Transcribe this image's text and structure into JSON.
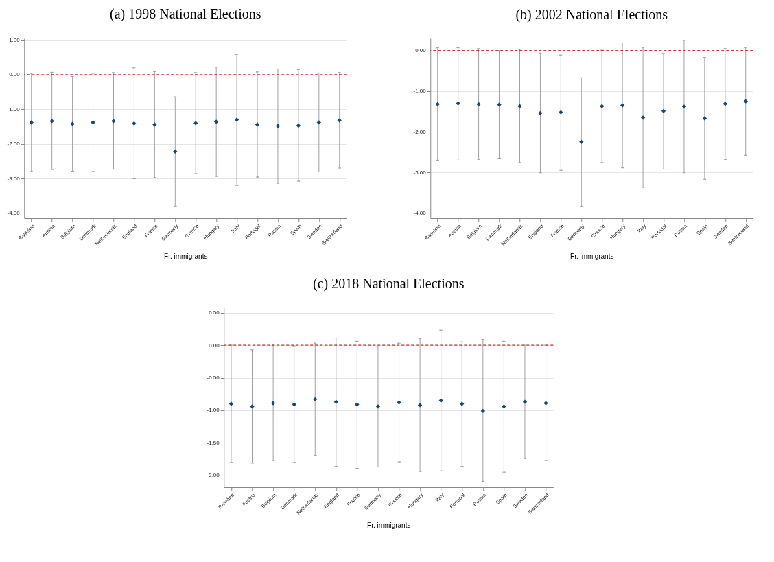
{
  "chart_data": [
    {
      "type": "scatter",
      "title": "(a) 1998 National Elections",
      "xlabel": "Fr. immigrants",
      "categories": [
        "Baseline",
        "Austria",
        "Belgium",
        "Denmark",
        "Netherlands",
        "England",
        "France",
        "Germany",
        "Greece",
        "Hungary",
        "Italy",
        "Portugal",
        "Russia",
        "Spain",
        "Sweden",
        "Switzerland"
      ],
      "series": [
        {
          "color": "#1a476f",
          "values": [
            -1.38,
            -1.34,
            -1.42,
            -1.38,
            -1.34,
            -1.41,
            -1.44,
            -2.22,
            -1.4,
            -1.36,
            -1.3,
            -1.44,
            -1.48,
            -1.47,
            -1.38,
            -1.32
          ],
          "errors": [
            [
              -2.8,
              0.04
            ],
            [
              -2.74,
              0.07
            ],
            [
              -2.79,
              -0.05
            ],
            [
              -2.8,
              0.04
            ],
            [
              -2.73,
              0.06
            ],
            [
              -3.01,
              0.2
            ],
            [
              -2.98,
              0.09
            ],
            [
              -3.8,
              -0.64
            ],
            [
              -2.86,
              0.06
            ],
            [
              -2.94,
              0.22
            ],
            [
              -3.2,
              0.59
            ],
            [
              -2.96,
              0.08
            ],
            [
              -3.14,
              0.17
            ],
            [
              -3.08,
              0.15
            ],
            [
              -2.81,
              0.05
            ],
            [
              -2.7,
              0.06
            ]
          ]
        }
      ],
      "ylim": [
        -4.15,
        1.05
      ],
      "yticks": [
        {
          "value": -4,
          "label": "-4.00"
        },
        {
          "value": -3,
          "label": "-3.00"
        },
        {
          "value": -2,
          "label": "-2.00"
        },
        {
          "value": -1,
          "label": "-1.00"
        },
        {
          "value": 0,
          "label": "0.00"
        },
        {
          "value": 1,
          "label": "1.00"
        }
      ],
      "ref_lines": [
        {
          "axis": "y",
          "value": 0,
          "color": "#c00000",
          "line_style": "dashed"
        }
      ],
      "grid": "y",
      "marker": "diamond"
    },
    {
      "type": "scatter",
      "title": "(b) 2002 National Elections",
      "xlabel": "Fr. immigrants",
      "categories": [
        "Baseline",
        "Austria",
        "Belgium",
        "Denmark",
        "Netherlands",
        "England",
        "France",
        "Germany",
        "Greece",
        "Hungary",
        "Italy",
        "Portugal",
        "Russia",
        "Spain",
        "Sweden",
        "Switzerland"
      ],
      "series": [
        {
          "color": "#1a476f",
          "values": [
            -1.32,
            -1.3,
            -1.32,
            -1.33,
            -1.37,
            -1.54,
            -1.52,
            -2.25,
            -1.37,
            -1.35,
            -1.65,
            -1.49,
            -1.38,
            -1.67,
            -1.31,
            -1.25
          ],
          "errors": [
            [
              -2.7,
              0.07
            ],
            [
              -2.67,
              0.07
            ],
            [
              -2.68,
              0.05
            ],
            [
              -2.65,
              0.0
            ],
            [
              -2.76,
              0.03
            ],
            [
              -3.01,
              -0.06
            ],
            [
              -2.95,
              -0.11
            ],
            [
              -3.84,
              -0.67
            ],
            [
              -2.76,
              0.01
            ],
            [
              -2.89,
              0.19
            ],
            [
              -3.37,
              0.07
            ],
            [
              -2.92,
              -0.07
            ],
            [
              -3.01,
              0.25
            ],
            [
              -3.17,
              -0.17
            ],
            [
              -2.68,
              0.05
            ],
            [
              -2.58,
              0.08
            ]
          ]
        }
      ],
      "ylim": [
        -4.13,
        0.3
      ],
      "yticks": [
        {
          "value": -4,
          "label": "-4.00"
        },
        {
          "value": -3,
          "label": "-3.00"
        },
        {
          "value": -2,
          "label": "-2.00"
        },
        {
          "value": -1,
          "label": "-1.00"
        },
        {
          "value": 0,
          "label": "0.00"
        }
      ],
      "ref_lines": [
        {
          "axis": "y",
          "value": 0,
          "color": "#c00000",
          "line_style": "dashed"
        }
      ],
      "grid": "y",
      "marker": "diamond"
    },
    {
      "type": "scatter",
      "title": "(c) 2018 National Elections",
      "xlabel": "Fr. immigrants",
      "categories": [
        "Baseline",
        "Austria",
        "Belgium",
        "Denmark",
        "Netherlands",
        "England",
        "France",
        "Germany",
        "Greece",
        "Hungary",
        "Italy",
        "Portugal",
        "Russia",
        "Spain",
        "Sweden",
        "Switzerland"
      ],
      "series": [
        {
          "color": "#1a476f",
          "values": [
            -0.9,
            -0.94,
            -0.89,
            -0.91,
            -0.83,
            -0.87,
            -0.91,
            -0.94,
            -0.88,
            -0.92,
            -0.85,
            -0.9,
            -1.01,
            -0.94,
            -0.87,
            -0.89
          ],
          "errors": [
            [
              -1.8,
              0.0
            ],
            [
              -1.81,
              -0.07
            ],
            [
              -1.77,
              0.0
            ],
            [
              -1.8,
              -0.01
            ],
            [
              -1.69,
              0.03
            ],
            [
              -1.86,
              0.11
            ],
            [
              -1.89,
              0.06
            ],
            [
              -1.87,
              -0.02
            ],
            [
              -1.79,
              0.03
            ],
            [
              -1.94,
              0.1
            ],
            [
              -1.93,
              0.23
            ],
            [
              -1.86,
              0.05
            ],
            [
              -2.09,
              0.09
            ],
            [
              -1.95,
              0.06
            ],
            [
              -1.74,
              0.0
            ],
            [
              -1.77,
              0.0
            ]
          ]
        }
      ],
      "ylim": [
        -2.18,
        0.58
      ],
      "yticks": [
        {
          "value": -2,
          "label": "-2.00"
        },
        {
          "value": -1.5,
          "label": "-1.50"
        },
        {
          "value": -1,
          "label": "-1.00"
        },
        {
          "value": -0.5,
          "label": "-0.50"
        },
        {
          "value": 0,
          "label": "0.00"
        },
        {
          "value": 0.5,
          "label": "0.50"
        }
      ],
      "ref_lines": [
        {
          "axis": "y",
          "value": 0,
          "color": "#c00000",
          "line_style": "dashed"
        }
      ],
      "grid": "y",
      "marker": "diamond"
    }
  ]
}
